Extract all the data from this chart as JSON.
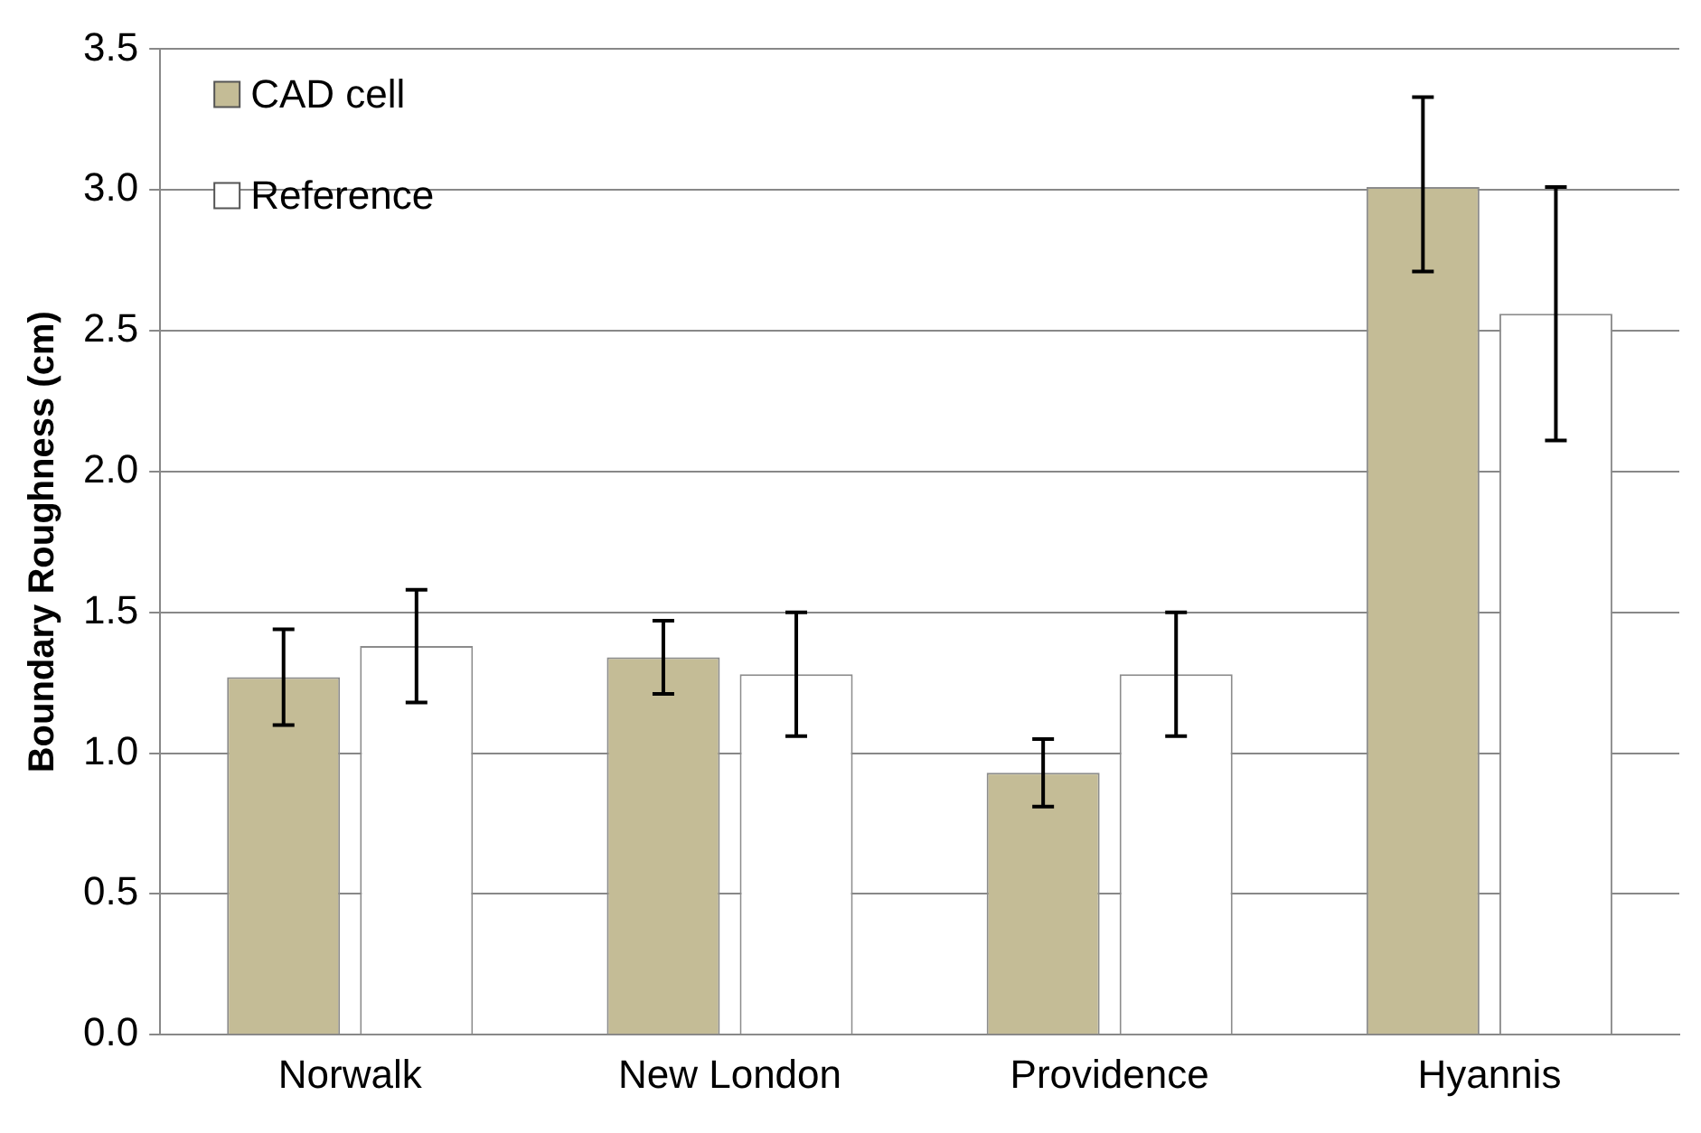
{
  "chart_data": {
    "type": "bar",
    "ylabel": "Boundary Roughness (cm)",
    "categories": [
      "Norwalk",
      "New London",
      "Providence",
      "Hyannis"
    ],
    "series": [
      {
        "name": "CAD cell",
        "color": "#c4bc96",
        "values": [
          1.27,
          1.34,
          0.93,
          3.01
        ],
        "errors": [
          [
            1.1,
            1.44
          ],
          [
            1.21,
            1.47
          ],
          [
            0.81,
            1.05
          ],
          [
            2.71,
            3.33
          ]
        ]
      },
      {
        "name": "Reference",
        "color": "#ffffff",
        "values": [
          1.38,
          1.28,
          1.28,
          2.56
        ],
        "errors": [
          [
            1.18,
            1.58
          ],
          [
            1.06,
            1.5
          ],
          [
            1.06,
            1.5
          ],
          [
            2.11,
            3.01
          ]
        ]
      }
    ],
    "ylim": [
      0,
      3.5
    ],
    "yticks": [
      {
        "value": 0,
        "label": "0.0"
      },
      0.5,
      {
        "value": 1,
        "label": "1.0"
      },
      1.5,
      {
        "value": 2,
        "label": "2.0"
      },
      2.5,
      {
        "value": 3,
        "label": "3.0"
      },
      3.5
    ],
    "grid": "y",
    "legend": "top left"
  }
}
